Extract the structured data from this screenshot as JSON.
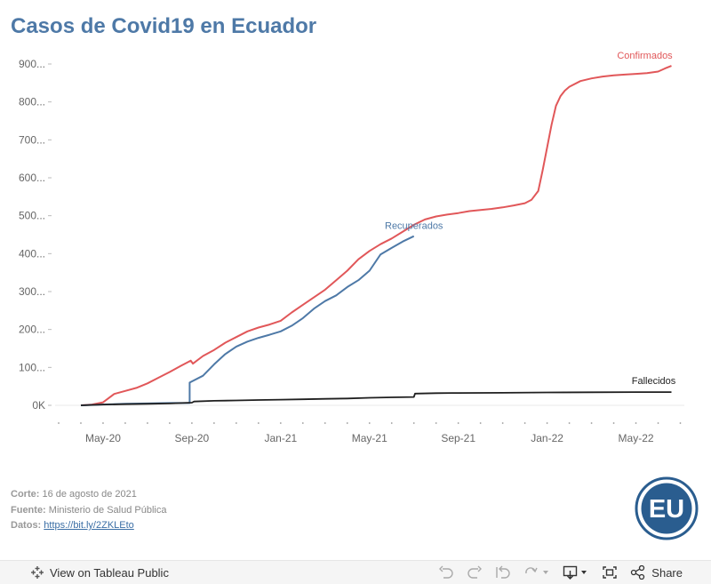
{
  "title": "Casos de Covid19 en Ecuador",
  "chart_data": {
    "type": "line",
    "title": "Casos de Covid19 en Ecuador",
    "xlabel": "",
    "ylabel": "",
    "x_unit": "months since 2020-03",
    "xlim": [
      0,
      28.5
    ],
    "ylim": [
      0,
      900
    ],
    "y_ticks": [
      {
        "value": 0,
        "label": "0K"
      },
      {
        "value": 100,
        "label": "100..."
      },
      {
        "value": 200,
        "label": "200..."
      },
      {
        "value": 300,
        "label": "300..."
      },
      {
        "value": 400,
        "label": "400..."
      },
      {
        "value": 500,
        "label": "500..."
      },
      {
        "value": 600,
        "label": "600..."
      },
      {
        "value": 700,
        "label": "700..."
      },
      {
        "value": 800,
        "label": "800..."
      },
      {
        "value": 900,
        "label": "900..."
      }
    ],
    "x_ticks": [
      {
        "value": 2,
        "label": "May-20"
      },
      {
        "value": 6,
        "label": "Sep-20"
      },
      {
        "value": 10,
        "label": "Jan-21"
      },
      {
        "value": 14,
        "label": "May-21"
      },
      {
        "value": 18,
        "label": "Sep-21"
      },
      {
        "value": 22,
        "label": "Jan-22"
      },
      {
        "value": 26,
        "label": "May-22"
      }
    ],
    "series": [
      {
        "name": "Confirmados",
        "color": "#e15759",
        "points": [
          [
            1,
            0
          ],
          [
            1.5,
            2
          ],
          [
            2,
            8
          ],
          [
            2.5,
            30
          ],
          [
            3,
            38
          ],
          [
            3.5,
            46
          ],
          [
            4,
            58
          ],
          [
            4.5,
            73
          ],
          [
            5,
            88
          ],
          [
            5.5,
            104
          ],
          [
            5.95,
            118
          ],
          [
            6.05,
            110
          ],
          [
            6.5,
            130
          ],
          [
            7,
            146
          ],
          [
            7.5,
            165
          ],
          [
            8,
            180
          ],
          [
            8.5,
            195
          ],
          [
            9,
            205
          ],
          [
            9.5,
            213
          ],
          [
            10,
            223
          ],
          [
            10.5,
            245
          ],
          [
            11,
            265
          ],
          [
            11.5,
            285
          ],
          [
            12,
            305
          ],
          [
            12.5,
            330
          ],
          [
            13,
            355
          ],
          [
            13.5,
            385
          ],
          [
            14,
            407
          ],
          [
            14.5,
            425
          ],
          [
            15,
            440
          ],
          [
            15.5,
            458
          ],
          [
            16,
            476
          ],
          [
            16.5,
            490
          ],
          [
            17,
            498
          ],
          [
            17.5,
            503
          ],
          [
            18,
            507
          ],
          [
            18.5,
            512
          ],
          [
            19,
            515
          ],
          [
            19.5,
            518
          ],
          [
            20,
            522
          ],
          [
            20.5,
            527
          ],
          [
            21,
            533
          ],
          [
            21.3,
            542
          ],
          [
            21.6,
            565
          ],
          [
            21.8,
            620
          ],
          [
            22,
            680
          ],
          [
            22.2,
            740
          ],
          [
            22.4,
            790
          ],
          [
            22.6,
            815
          ],
          [
            22.8,
            830
          ],
          [
            23,
            840
          ],
          [
            23.5,
            855
          ],
          [
            24,
            862
          ],
          [
            24.5,
            867
          ],
          [
            25,
            870
          ],
          [
            25.5,
            872
          ],
          [
            26,
            874
          ],
          [
            26.5,
            876
          ],
          [
            27,
            880
          ],
          [
            27.3,
            888
          ],
          [
            27.6,
            895
          ]
        ]
      },
      {
        "name": "Recuperados",
        "color": "#4e79a7",
        "points": [
          [
            1,
            0
          ],
          [
            2,
            2
          ],
          [
            3,
            4
          ],
          [
            4,
            5
          ],
          [
            5,
            6
          ],
          [
            5.9,
            6
          ],
          [
            5.9,
            60
          ],
          [
            6.5,
            78
          ],
          [
            7,
            108
          ],
          [
            7.5,
            135
          ],
          [
            8,
            155
          ],
          [
            8.5,
            168
          ],
          [
            9,
            178
          ],
          [
            9.5,
            186
          ],
          [
            10,
            195
          ],
          [
            10.5,
            210
          ],
          [
            11,
            230
          ],
          [
            11.5,
            255
          ],
          [
            12,
            275
          ],
          [
            12.5,
            290
          ],
          [
            13,
            312
          ],
          [
            13.5,
            330
          ],
          [
            14,
            355
          ],
          [
            14.5,
            398
          ],
          [
            15,
            415
          ],
          [
            15.5,
            432
          ],
          [
            16,
            446
          ]
        ]
      },
      {
        "name": "Fallecidos",
        "color": "#1f1f1f",
        "points": [
          [
            1,
            0
          ],
          [
            2,
            2
          ],
          [
            3,
            3
          ],
          [
            4,
            4
          ],
          [
            5,
            5
          ],
          [
            6,
            7
          ],
          [
            6.1,
            10
          ],
          [
            7,
            12
          ],
          [
            8,
            13
          ],
          [
            9,
            14
          ],
          [
            10,
            15
          ],
          [
            11,
            16
          ],
          [
            12,
            17
          ],
          [
            13,
            18
          ],
          [
            14,
            20
          ],
          [
            15,
            21
          ],
          [
            16,
            22
          ],
          [
            16.05,
            31
          ],
          [
            17,
            32
          ],
          [
            18,
            32.5
          ],
          [
            20,
            33
          ],
          [
            22,
            34
          ],
          [
            24,
            34.5
          ],
          [
            26,
            35
          ],
          [
            27.6,
            35
          ]
        ]
      }
    ],
    "annotations": [
      {
        "text": "Confirmados",
        "series": "Confirmados"
      },
      {
        "text": "Recuperados",
        "series": "Recuperados"
      },
      {
        "text": "Fallecidos",
        "series": "Fallecidos"
      }
    ]
  },
  "meta": {
    "corte_label": "Corte:",
    "corte_value": "16 de agosto de 2021",
    "fuente_label": "Fuente:",
    "fuente_value": "Ministerio de Salud Pública",
    "datos_label": "Datos:",
    "datos_link": "https://bit.ly/2ZKLEto"
  },
  "logo": {
    "text": "EU",
    "color": "#2a5d8f"
  },
  "footer": {
    "view_label": "View on Tableau Public",
    "share_label": "Share"
  }
}
